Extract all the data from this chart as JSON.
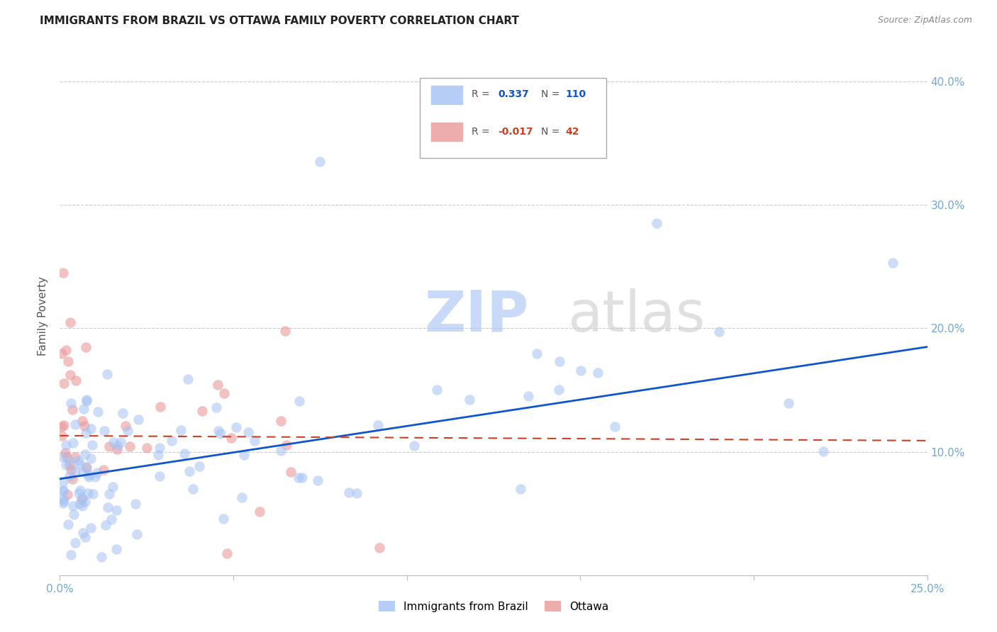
{
  "title": "IMMIGRANTS FROM BRAZIL VS OTTAWA FAMILY POVERTY CORRELATION CHART",
  "source": "Source: ZipAtlas.com",
  "ylabel": "Family Poverty",
  "xlim": [
    0.0,
    0.25
  ],
  "ylim": [
    0.0,
    0.42
  ],
  "yticks": [
    0.1,
    0.2,
    0.3,
    0.4
  ],
  "ytick_labels": [
    "10.0%",
    "20.0%",
    "30.0%",
    "40.0%"
  ],
  "xtick_positions": [
    0.0,
    0.05,
    0.1,
    0.15,
    0.2,
    0.25
  ],
  "xtick_labels": [
    "0.0%",
    "",
    "",
    "",
    "",
    "25.0%"
  ],
  "watermark": "ZIPatlas",
  "legend_entries": [
    {
      "label": "Immigrants from Brazil",
      "R": "0.337",
      "N": "110",
      "color": "#a4c2f4"
    },
    {
      "label": "Ottawa",
      "R": "-0.017",
      "N": "42",
      "color": "#ea9999"
    }
  ],
  "blue_line_x": [
    0.0,
    0.25
  ],
  "blue_line_y": [
    0.078,
    0.185
  ],
  "pink_line_x": [
    0.0,
    0.25
  ],
  "pink_line_y": [
    0.113,
    0.109
  ],
  "blue_dot_color": "#a4c2f4",
  "pink_dot_color": "#ea9999",
  "blue_line_color": "#1155cc",
  "pink_line_color": "#cc4125",
  "grid_color": "#cccccc",
  "axis_tick_color": "#6fa8dc",
  "background_color": "#ffffff",
  "title_fontsize": 11,
  "watermark_color": "#c9daf8",
  "watermark_fontsize": 58
}
